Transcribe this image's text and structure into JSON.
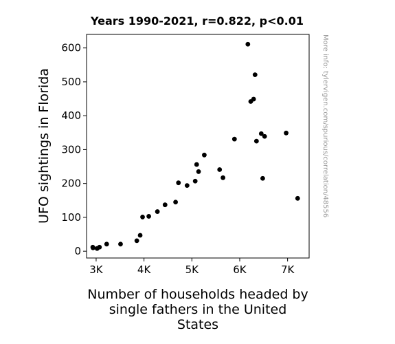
{
  "chart_data": {
    "type": "scatter",
    "title": "Years 1990-2021, r=0.822, p<0.01",
    "xlabel_lines": [
      "Number of households headed by",
      "single fathers in the United",
      "States"
    ],
    "ylabel": "UFO sightings in Florida",
    "watermark": "More info: tylervigen.com/spurious/correlation/48556",
    "xlim": [
      2800,
      7450
    ],
    "ylim": [
      -20,
      640
    ],
    "xticks": [
      3000,
      4000,
      5000,
      6000,
      7000
    ],
    "xtick_labels": [
      "3K",
      "4K",
      "5K",
      "6K",
      "7K"
    ],
    "yticks": [
      0,
      100,
      200,
      300,
      400,
      500,
      600
    ],
    "ytick_labels": [
      "0",
      "100",
      "200",
      "300",
      "400",
      "500",
      "600"
    ],
    "grid": false,
    "marker_color": "#000000",
    "points": [
      {
        "x": 2930,
        "y": 12
      },
      {
        "x": 2935,
        "y": 10
      },
      {
        "x": 3020,
        "y": 8
      },
      {
        "x": 3070,
        "y": 12
      },
      {
        "x": 3220,
        "y": 21
      },
      {
        "x": 3510,
        "y": 21
      },
      {
        "x": 3850,
        "y": 31
      },
      {
        "x": 3920,
        "y": 47
      },
      {
        "x": 3970,
        "y": 101
      },
      {
        "x": 4100,
        "y": 103
      },
      {
        "x": 4280,
        "y": 117
      },
      {
        "x": 4440,
        "y": 137
      },
      {
        "x": 4660,
        "y": 145
      },
      {
        "x": 4720,
        "y": 202
      },
      {
        "x": 4900,
        "y": 194
      },
      {
        "x": 5070,
        "y": 207
      },
      {
        "x": 5100,
        "y": 256
      },
      {
        "x": 5140,
        "y": 235
      },
      {
        "x": 5260,
        "y": 284
      },
      {
        "x": 5580,
        "y": 241
      },
      {
        "x": 5650,
        "y": 217
      },
      {
        "x": 5890,
        "y": 331
      },
      {
        "x": 6170,
        "y": 611
      },
      {
        "x": 6230,
        "y": 442
      },
      {
        "x": 6290,
        "y": 449
      },
      {
        "x": 6320,
        "y": 521
      },
      {
        "x": 6350,
        "y": 325
      },
      {
        "x": 6450,
        "y": 347
      },
      {
        "x": 6480,
        "y": 215
      },
      {
        "x": 6520,
        "y": 339
      },
      {
        "x": 6970,
        "y": 349
      },
      {
        "x": 7210,
        "y": 156
      }
    ]
  }
}
